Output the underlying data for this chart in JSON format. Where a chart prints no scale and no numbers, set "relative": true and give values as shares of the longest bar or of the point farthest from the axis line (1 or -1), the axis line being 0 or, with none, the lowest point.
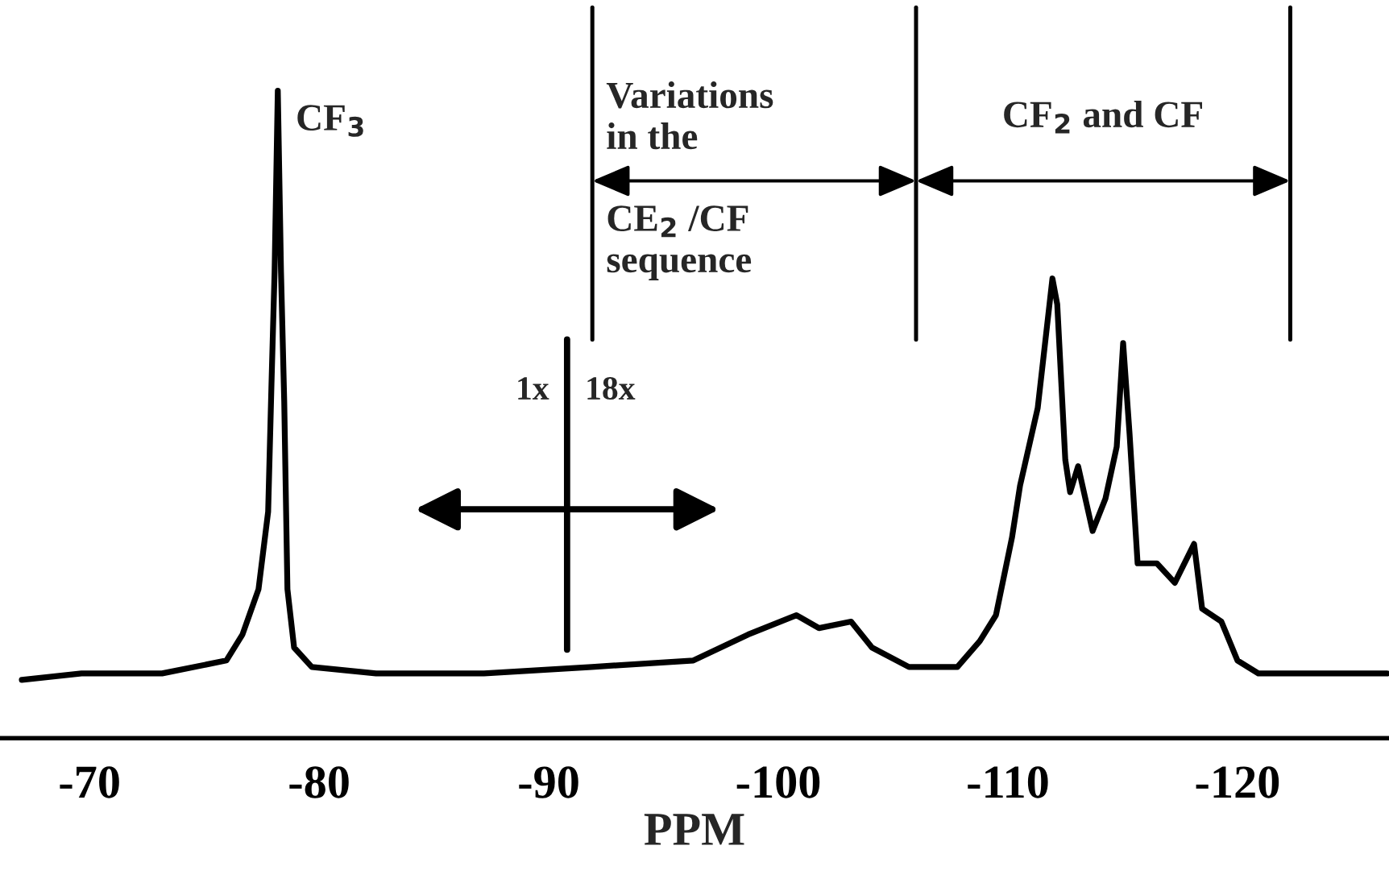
{
  "chart_data": {
    "type": "line",
    "relative": true,
    "xlabel": "PPM",
    "x": [
      -67.05,
      -69.65,
      -73.16,
      -75.96,
      -76.66,
      -77.36,
      -77.78,
      -77.92,
      -78.06,
      -78.2,
      -78.34,
      -78.48,
      -78.62,
      -78.91,
      -79.68,
      -82.48,
      -87.18,
      -91.88,
      -96.3,
      -98.68,
      -100.79,
      -101.77,
      -103.17,
      -104.08,
      -105.69,
      -107.8,
      -108.78,
      -109.48,
      -110.18,
      -110.53,
      -111.3,
      -111.94,
      -112.15,
      -112.5,
      -112.71,
      -113.06,
      -113.69,
      -114.25,
      -114.74,
      -115.02,
      -115.3,
      -115.65,
      -116.49,
      -117.27,
      -118.11,
      -118.46,
      -119.3,
      -120.0,
      -120.91,
      -124.42,
      -126.52
    ],
    "series": [
      {
        "color": "#000000",
        "values": [
          0.09,
          0.1,
          0.1,
          0.12,
          0.16,
          0.23,
          0.35,
          0.54,
          0.72,
          1.0,
          0.72,
          0.52,
          0.23,
          0.14,
          0.11,
          0.1,
          0.1,
          0.11,
          0.12,
          0.16,
          0.19,
          0.17,
          0.18,
          0.14,
          0.11,
          0.11,
          0.15,
          0.19,
          0.31,
          0.39,
          0.51,
          0.71,
          0.67,
          0.43,
          0.38,
          0.42,
          0.32,
          0.37,
          0.45,
          0.61,
          0.47,
          0.27,
          0.27,
          0.24,
          0.3,
          0.2,
          0.18,
          0.12,
          0.1,
          0.1,
          0.1
        ]
      }
    ],
    "xlim": [
      -66.1,
      -126.6
    ],
    "xticks": [
      -70,
      -80,
      -90,
      -100,
      -110,
      -120
    ],
    "grid": false,
    "legend": false,
    "marker": "none",
    "line_style": "solid",
    "annotations": [
      "CF$_{3}$",
      "1x",
      "18x"
    ],
    "ref_lines": [
      {
        "axis": "x",
        "value": -90.8
      },
      {
        "axis": "x",
        "value": -91.9,
        "label": "Variations\nin the\n\nCE$_{2}$ /CF\nsequence"
      },
      {
        "axis": "x",
        "value": -106.0,
        "label": "CF$_{2}$ and CF"
      },
      {
        "axis": "x",
        "value": -122.3
      }
    ]
  }
}
